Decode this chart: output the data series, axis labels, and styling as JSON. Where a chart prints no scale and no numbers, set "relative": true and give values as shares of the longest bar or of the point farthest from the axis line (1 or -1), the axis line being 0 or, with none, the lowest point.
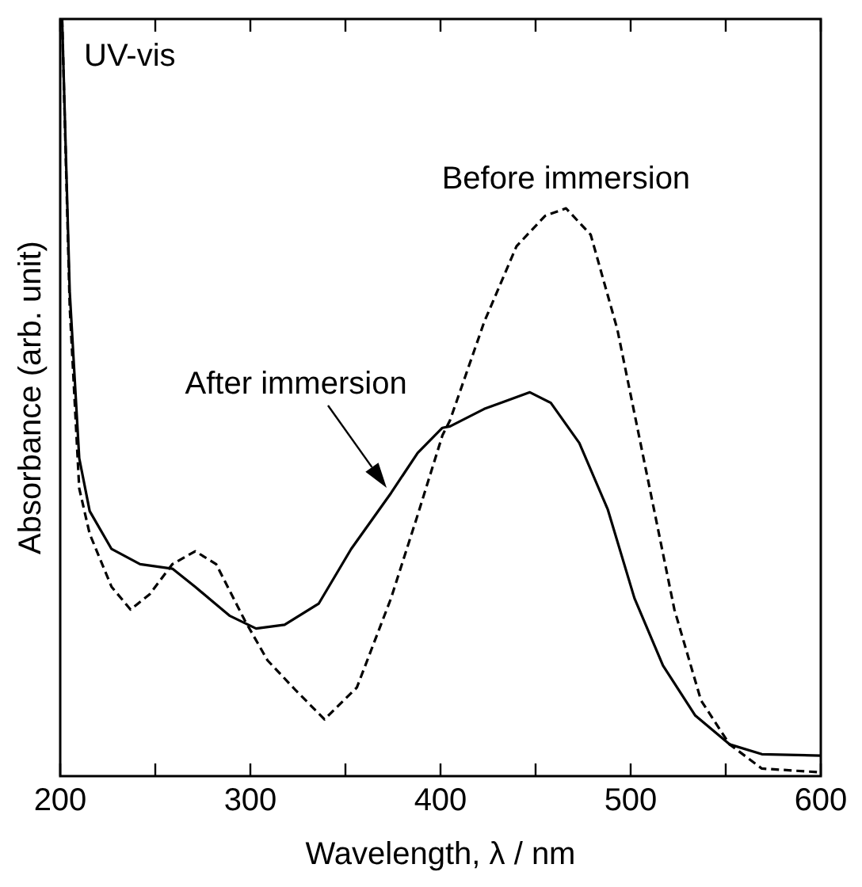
{
  "chart_data": {
    "type": "line",
    "relative": true,
    "xlabel": "Wavelength, λ / nm",
    "ylabel": "Absorbance (arb. unit)",
    "annotations": [
      "UV-vis"
    ],
    "xlim": [
      200,
      600
    ],
    "xticks": [
      200,
      {
        "value": 250,
        "label": null
      },
      300,
      {
        "value": 350,
        "label": null
      },
      400,
      {
        "value": 450,
        "label": null
      },
      500,
      {
        "value": 550,
        "label": null
      },
      600
    ],
    "grid": false,
    "legend": false,
    "marker": "none",
    "series": [
      {
        "name": "After immersion",
        "color": "#000000",
        "line_style": "solid",
        "x": [
          201,
          205,
          210,
          215.5,
          227,
          242,
          259,
          271,
          289,
          303,
          318,
          336,
          353,
          374,
          388,
          401,
          405,
          423,
          447,
          458,
          473,
          488,
          502,
          517,
          534,
          552,
          569,
          600
        ],
        "values": [
          1.0,
          0.64,
          0.42,
          0.35,
          0.3,
          0.28,
          0.274,
          0.25,
          0.212,
          0.195,
          0.2,
          0.228,
          0.3,
          0.374,
          0.427,
          0.46,
          0.462,
          0.485,
          0.507,
          0.493,
          0.44,
          0.352,
          0.235,
          0.146,
          0.08,
          0.042,
          0.029,
          0.027
        ]
      },
      {
        "name": "Before immersion",
        "color": "#000000",
        "line_style": "dashed",
        "x": [
          201,
          205,
          210,
          215.5,
          227,
          237,
          247,
          259,
          271,
          282,
          297,
          309,
          324,
          339,
          356,
          374,
          388,
          401,
          405,
          423,
          440,
          455,
          466,
          479,
          493,
          508,
          523,
          537,
          552,
          569,
          600
        ],
        "values": [
          1.0,
          0.62,
          0.38,
          0.32,
          0.25,
          0.22,
          0.24,
          0.28,
          0.297,
          0.28,
          0.206,
          0.153,
          0.113,
          0.075,
          0.117,
          0.235,
          0.345,
          0.45,
          0.47,
          0.6,
          0.7,
          0.74,
          0.75,
          0.715,
          0.59,
          0.405,
          0.22,
          0.1,
          0.042,
          0.01,
          0.005
        ]
      }
    ]
  }
}
